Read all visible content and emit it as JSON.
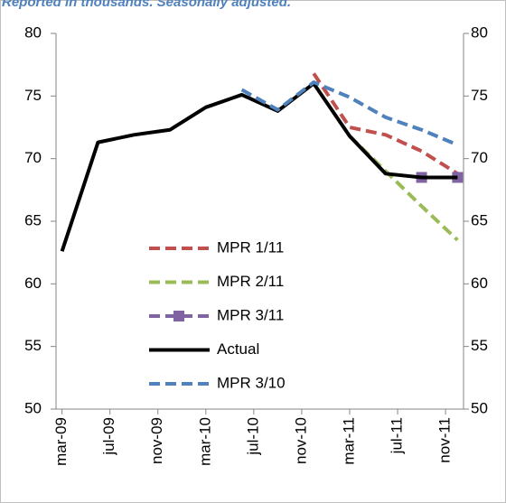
{
  "chart_data": {
    "type": "line",
    "subtitle": "Reported in thousands. Seasonally adjusted.",
    "x": [
      0,
      3,
      6,
      9,
      12,
      15,
      18,
      21,
      24,
      27,
      30,
      33
    ],
    "xlim": [
      -0.5,
      33.5
    ],
    "xticks": [
      {
        "value": 0,
        "label": "mar-09"
      },
      {
        "value": 4,
        "label": "jul-09"
      },
      {
        "value": 8,
        "label": "nov-09"
      },
      {
        "value": 12,
        "label": "mar-10"
      },
      {
        "value": 16,
        "label": "jul-10"
      },
      {
        "value": 20,
        "label": "nov-10"
      },
      {
        "value": 24,
        "label": "mar-11"
      },
      {
        "value": 28,
        "label": "jul-11"
      },
      {
        "value": 32,
        "label": "nov-11"
      }
    ],
    "ylim": [
      50,
      80
    ],
    "yticks": [
      50,
      55,
      60,
      65,
      70,
      75,
      80
    ],
    "y2lim": [
      50,
      80
    ],
    "y2ticks": [
      50,
      55,
      60,
      65,
      70,
      75,
      80
    ],
    "legend": "center-left",
    "series": [
      {
        "name": "MPR 1/11",
        "color": "#c0504d",
        "dashed": true,
        "values": [
          null,
          null,
          null,
          null,
          null,
          null,
          null,
          76.8,
          72.5,
          71.9,
          70.6,
          68.8
        ]
      },
      {
        "name": "MPR 2/11",
        "color": "#9bbb59",
        "dashed": true,
        "values": [
          null,
          null,
          null,
          null,
          null,
          null,
          null,
          null,
          71.8,
          69.0,
          66.2,
          63.5
        ]
      },
      {
        "name": "MPR 3/11",
        "color": "#8064a2",
        "dashed": true,
        "marker": "square",
        "values": [
          null,
          null,
          null,
          null,
          null,
          null,
          null,
          null,
          null,
          null,
          68.5,
          68.5
        ]
      },
      {
        "name": "Actual",
        "color": "#000000",
        "dashed": false,
        "values": [
          62.6,
          71.3,
          71.9,
          72.3,
          74.1,
          75.1,
          73.8,
          76.0,
          71.8,
          68.8,
          68.5,
          68.5
        ]
      },
      {
        "name": "MPR 3/10",
        "color": "#4f81bd",
        "dashed": true,
        "values": [
          null,
          null,
          null,
          null,
          null,
          75.5,
          73.9,
          76.1,
          74.9,
          73.3,
          72.3,
          71.1
        ]
      }
    ]
  }
}
